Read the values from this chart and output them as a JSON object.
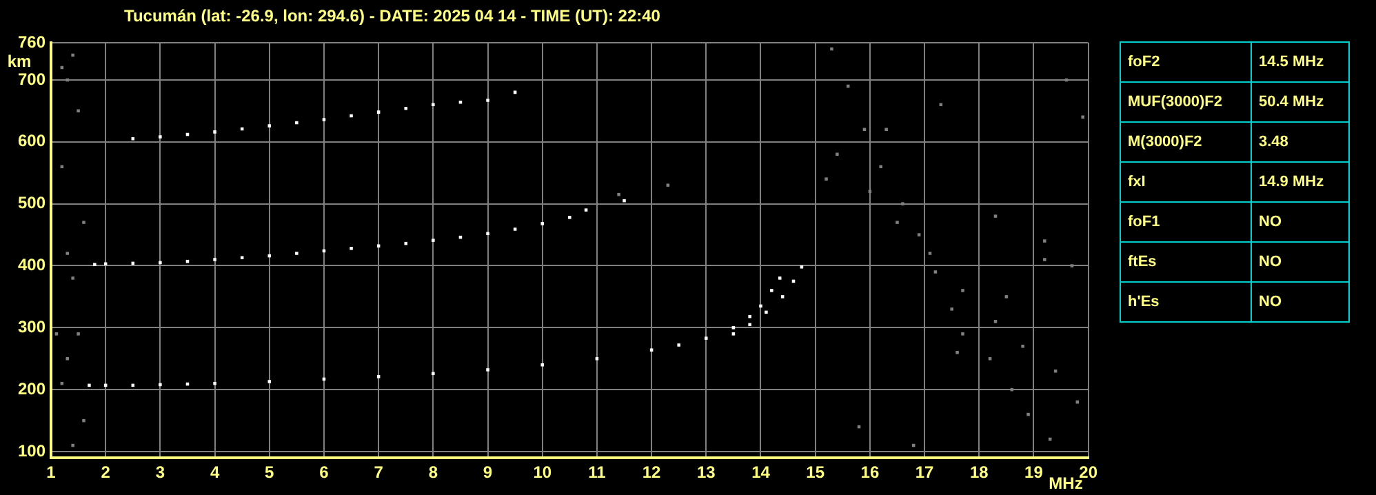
{
  "chart_data": [
    {
      "type": "scatter",
      "title": "Tucumán (lat: -26.9, lon: 294.6) - DATE: 2025 04 14 - TIME (UT): 22:40",
      "xlabel": "MHz",
      "ylabel": "km",
      "xlim": [
        1,
        20
      ],
      "xticks": [
        1,
        2,
        3,
        4,
        5,
        6,
        7,
        8,
        9,
        10,
        11,
        12,
        13,
        14,
        15,
        16,
        17,
        18,
        19,
        20
      ],
      "ylim": [
        90,
        760
      ],
      "yticks": [
        100,
        200,
        300,
        400,
        500,
        600,
        700,
        760
      ],
      "grid": true,
      "legend": false,
      "marker": "square",
      "series": [
        {
          "color": "#ffffff",
          "x": [
            1.7,
            2,
            2.5,
            3,
            3.5,
            4,
            5,
            6,
            7,
            8,
            9,
            10,
            11,
            12,
            12.5,
            13,
            13.5,
            13.8,
            14.0,
            14.2,
            14.35
          ],
          "values": [
            207,
            207,
            207,
            208,
            209,
            210,
            213,
            217,
            221,
            226,
            232,
            240,
            250,
            264,
            272,
            283,
            300,
            318,
            335,
            360,
            380
          ]
        },
        {
          "color": "#ffffff",
          "x": [
            13.5,
            13.8,
            14.1,
            14.4,
            14.6,
            14.75
          ],
          "values": [
            290,
            305,
            325,
            350,
            375,
            398
          ]
        },
        {
          "color": "#ffffff",
          "x": [
            1.8,
            2,
            2.5,
            3,
            3.5,
            4,
            4.5,
            5,
            5.5,
            6,
            6.5,
            7,
            7.5,
            8,
            8.5,
            9,
            9.5,
            10,
            10.5,
            10.8,
            11.5
          ],
          "values": [
            402,
            403,
            404,
            405,
            407,
            410,
            413,
            416,
            420,
            424,
            428,
            432,
            436,
            441,
            446,
            452,
            459,
            468,
            478,
            490,
            505
          ]
        },
        {
          "color": "#ffffff",
          "x": [
            2.5,
            3,
            3.5,
            4,
            4.5,
            5,
            5.5,
            6,
            6.5,
            7,
            7.5,
            8,
            8.5,
            9,
            9.5
          ],
          "values": [
            605,
            608,
            612,
            616,
            621,
            626,
            631,
            636,
            642,
            648,
            654,
            660,
            664,
            667,
            680
          ]
        },
        {
          "color": "#808080",
          "x": [
            1.2,
            1.3,
            1.4,
            1.5,
            1.2,
            1.6,
            1.3,
            1.4,
            1.1,
            1.5,
            1.3,
            1.2,
            1.6,
            1.4,
            15.3,
            15.6,
            15.9,
            16.2,
            16.6,
            16.9,
            17.2,
            17.5,
            17.7,
            18.2,
            18.6,
            18.9,
            19.3,
            19.6,
            19.9,
            15.4,
            16.0,
            16.5,
            17.1,
            17.7,
            18.3,
            18.8,
            19.4,
            19.8,
            15.8,
            16.8,
            17.6,
            18.5,
            19.2,
            15.2,
            16.3,
            17.3,
            18.3,
            19.2,
            19.7,
            12.3,
            11.4
          ],
          "values": [
            720,
            700,
            740,
            650,
            560,
            470,
            420,
            380,
            290,
            290,
            250,
            210,
            150,
            110,
            750,
            690,
            620,
            560,
            500,
            450,
            390,
            330,
            290,
            250,
            200,
            160,
            120,
            700,
            640,
            580,
            520,
            470,
            420,
            360,
            310,
            270,
            230,
            180,
            140,
            110,
            260,
            350,
            440,
            540,
            620,
            660,
            480,
            410,
            400,
            530,
            515
          ]
        }
      ]
    },
    {
      "type": "other",
      "annotations": [
        "foF2",
        "14.5 MHz",
        "MUF(3000)F2",
        "50.4 MHz",
        "M(3000)F2",
        "3.48",
        "fxI",
        "14.9 MHz",
        "foF1",
        "NO",
        "ftEs",
        "NO",
        "h'Es",
        "NO"
      ]
    }
  ]
}
